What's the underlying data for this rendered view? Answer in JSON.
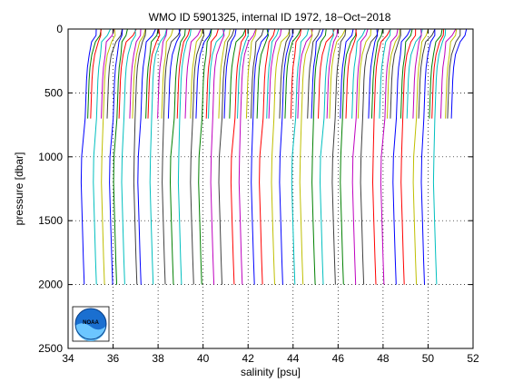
{
  "chart_data": {
    "type": "line",
    "title": "WMO ID 5901325, internal ID 1972, 18−Oct−2018",
    "xlabel": "salinity [psu]",
    "ylabel": "pressure [dbar]",
    "xlim": [
      34,
      52
    ],
    "ylim": [
      2500,
      0
    ],
    "y_reversed": true,
    "grid": "dotted",
    "x_ticks": [
      "34",
      "36",
      "38",
      "40",
      "42",
      "44",
      "46",
      "48",
      "50",
      "52"
    ],
    "y_ticks": [
      "0",
      "500",
      "1000",
      "1500",
      "2000",
      "2500"
    ],
    "offset_step": 0.18,
    "profile_count": 92,
    "deep_profiles": [
      0,
      3,
      5,
      7,
      8,
      10,
      13,
      14,
      17,
      20,
      22,
      24,
      27,
      29,
      32,
      34,
      37,
      39,
      42,
      44,
      47,
      49,
      52,
      54,
      57,
      59,
      62,
      64,
      67,
      69,
      72,
      74,
      77,
      79,
      82,
      84,
      87
    ],
    "series_colors": [
      "#0000ff",
      "#008000",
      "#ff0000",
      "#00bfbf",
      "#bf00bf",
      "#bfbf00",
      "#404040"
    ],
    "base_profile": [
      {
        "p": 0,
        "s": 35.25
      },
      {
        "p": 50,
        "s": 35.2
      },
      {
        "p": 100,
        "s": 35.0
      },
      {
        "p": 200,
        "s": 34.88
      },
      {
        "p": 300,
        "s": 34.8
      },
      {
        "p": 400,
        "s": 34.76
      },
      {
        "p": 500,
        "s": 34.74
      },
      {
        "p": 700,
        "s": 34.7
      },
      {
        "p": 1000,
        "s": 34.6
      },
      {
        "p": 1200,
        "s": 34.58
      },
      {
        "p": 1500,
        "s": 34.63
      },
      {
        "p": 1800,
        "s": 34.68
      },
      {
        "p": 2000,
        "s": 34.72
      }
    ]
  },
  "logo": {
    "text": "NOAA"
  }
}
